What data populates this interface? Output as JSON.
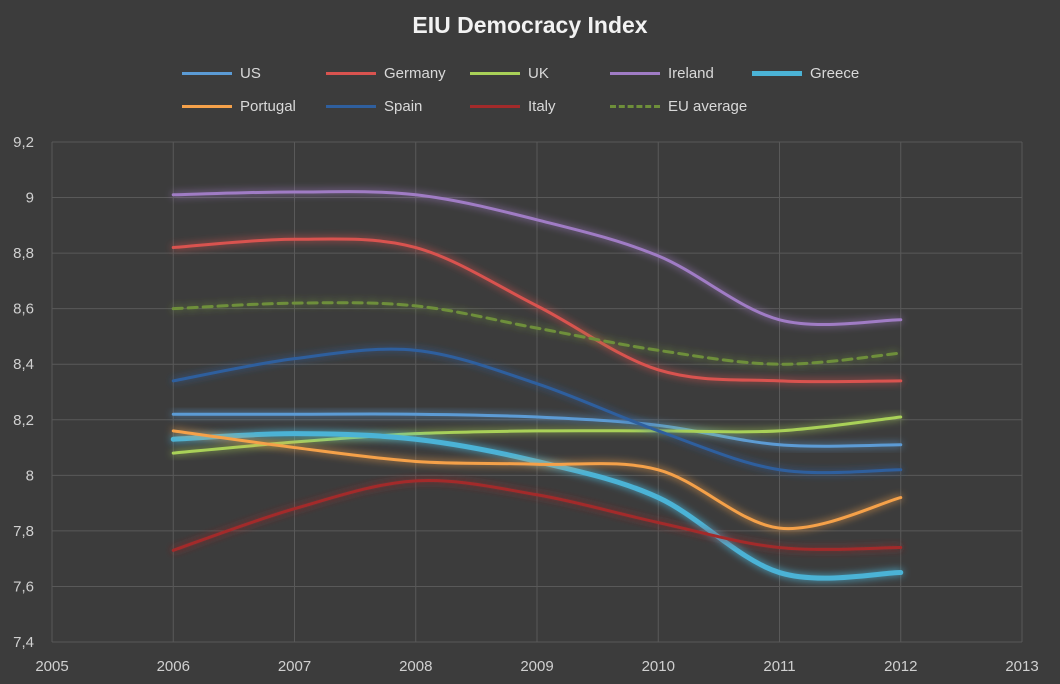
{
  "chart_data": {
    "type": "line",
    "title": "EIU Democracy Index",
    "xlabel": "",
    "ylabel": "",
    "xlim": [
      2005,
      2013
    ],
    "ylim": [
      7.4,
      9.2
    ],
    "x_ticks": [
      "2005",
      "2006",
      "2007",
      "2008",
      "2009",
      "2010",
      "2011",
      "2012",
      "2013"
    ],
    "y_ticks": [
      "7,4",
      "7,6",
      "7,8",
      "8",
      "8,2",
      "8,4",
      "8,6",
      "8,8",
      "9",
      "9,2"
    ],
    "grid": true,
    "legend_position": "top",
    "x": [
      2006,
      2007,
      2008,
      2009,
      2010,
      2011,
      2012
    ],
    "series": [
      {
        "name": "US",
        "color": "#5b9bd5",
        "style": "solid",
        "values": [
          8.22,
          8.22,
          8.22,
          8.21,
          8.18,
          8.11,
          8.11
        ]
      },
      {
        "name": "Germany",
        "color": "#d9534f",
        "style": "solid",
        "values": [
          8.82,
          8.85,
          8.82,
          8.61,
          8.38,
          8.34,
          8.34
        ]
      },
      {
        "name": "UK",
        "color": "#a9d158",
        "style": "solid",
        "values": [
          8.08,
          8.12,
          8.15,
          8.16,
          8.16,
          8.16,
          8.21
        ]
      },
      {
        "name": "Ireland",
        "color": "#a07cc5",
        "style": "solid",
        "values": [
          9.01,
          9.02,
          9.01,
          8.92,
          8.79,
          8.56,
          8.56
        ]
      },
      {
        "name": "Greece",
        "color": "#4bb3d6",
        "style": "solid-thick",
        "values": [
          8.13,
          8.15,
          8.13,
          8.05,
          7.92,
          7.65,
          7.65
        ]
      },
      {
        "name": "Portugal",
        "color": "#f5a14a",
        "style": "solid",
        "values": [
          8.16,
          8.1,
          8.05,
          8.04,
          8.02,
          7.81,
          7.92
        ]
      },
      {
        "name": "Spain",
        "color": "#2f5f9e",
        "style": "solid",
        "values": [
          8.34,
          8.42,
          8.45,
          8.33,
          8.16,
          8.02,
          8.02
        ]
      },
      {
        "name": "Italy",
        "color": "#a32a2a",
        "style": "solid",
        "values": [
          7.73,
          7.88,
          7.98,
          7.93,
          7.83,
          7.74,
          7.74
        ]
      },
      {
        "name": "EU average",
        "color": "#6e8f3a",
        "style": "dashed",
        "values": [
          8.6,
          8.62,
          8.61,
          8.53,
          8.45,
          8.4,
          8.44
        ]
      }
    ]
  }
}
